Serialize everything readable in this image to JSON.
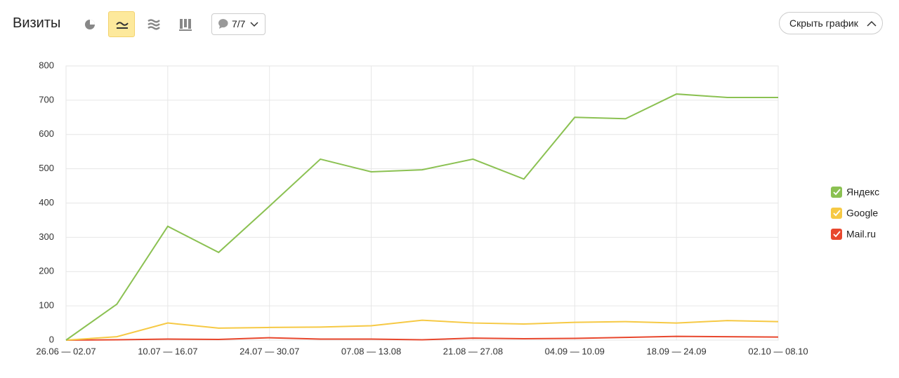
{
  "toolbar": {
    "title": "Визиты",
    "counter": "7/7",
    "hide_button": "Скрыть график"
  },
  "chart_data": {
    "type": "line",
    "categories": [
      "26.06 — 02.07",
      null,
      "10.07 — 16.07",
      null,
      "24.07 — 30.07",
      null,
      "07.08 — 13.08",
      null,
      "21.08 — 27.08",
      null,
      "04.09 — 10.09",
      null,
      "18.09 — 24.09",
      null,
      "02.10 — 08.10"
    ],
    "series": [
      {
        "name": "Яндекс",
        "color": "#8bc152",
        "values": [
          0,
          105,
          332,
          256,
          391,
          528,
          491,
          497,
          528,
          470,
          650,
          646,
          718,
          708,
          708
        ]
      },
      {
        "name": "Google",
        "color": "#f6c944",
        "values": [
          0,
          10,
          50,
          35,
          37,
          38,
          42,
          58,
          50,
          47,
          52,
          54,
          50,
          57,
          54
        ]
      },
      {
        "name": "Mail.ru",
        "color": "#e8472d",
        "values": [
          0,
          1,
          3,
          2,
          7,
          3,
          3,
          1,
          6,
          4,
          5,
          8,
          11,
          10,
          9
        ]
      }
    ],
    "ylim": [
      0,
      800
    ],
    "yticks": [
      0,
      100,
      200,
      300,
      400,
      500,
      600,
      700,
      800
    ],
    "grid": true,
    "legend": "right"
  }
}
